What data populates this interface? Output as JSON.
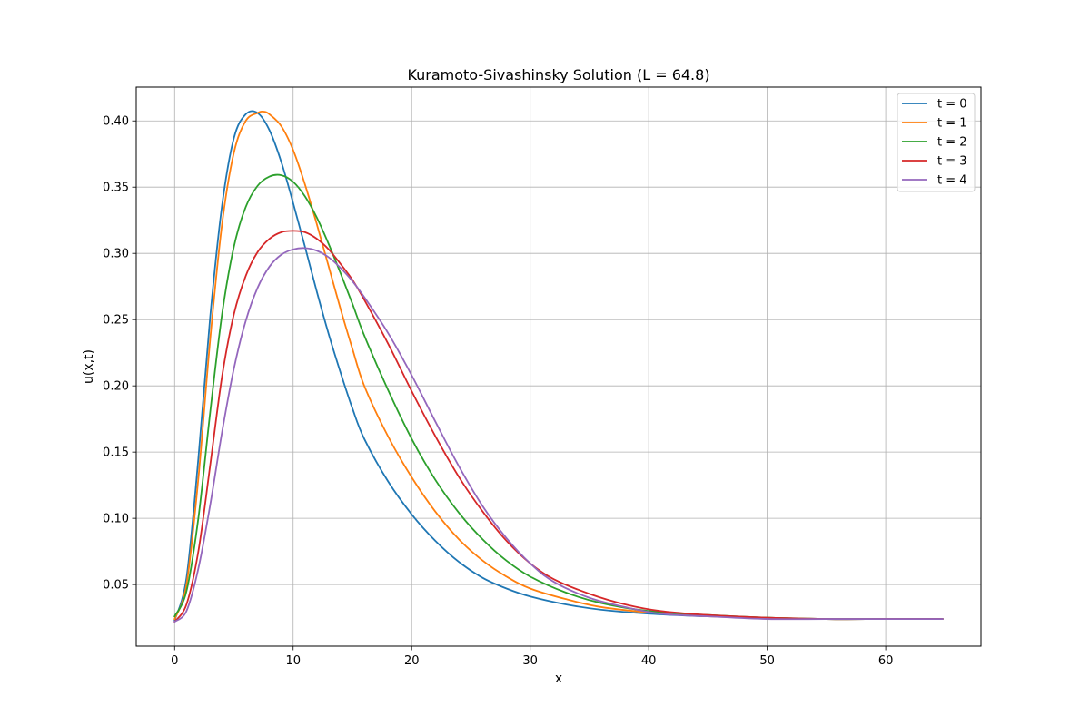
{
  "chart_data": {
    "type": "line",
    "title": "Kuramoto-Sivashinsky Solution (L = 64.8)",
    "xlabel": "x",
    "ylabel": "u(x,t)",
    "xlim": [
      -3.24,
      68.04
    ],
    "ylim": [
      0.0035,
      0.4255
    ],
    "xticks": [
      0,
      10,
      20,
      30,
      40,
      50,
      60
    ],
    "xtick_labels": [
      "0",
      "10",
      "20",
      "30",
      "40",
      "50",
      "60"
    ],
    "yticks": [
      0.05,
      0.1,
      0.15,
      0.2,
      0.25,
      0.3,
      0.35,
      0.4
    ],
    "ytick_labels": [
      "0.05",
      "0.10",
      "0.15",
      "0.20",
      "0.25",
      "0.30",
      "0.35",
      "0.40"
    ],
    "grid": true,
    "legend_position": "top-right",
    "series": [
      {
        "name": "t = 0",
        "color": "#1f77b4",
        "x": [
          0,
          1,
          2,
          3,
          4,
          5,
          6,
          7,
          8,
          9,
          10,
          11,
          12,
          13,
          14,
          15,
          16,
          18,
          20,
          22,
          24,
          26,
          28,
          30,
          33,
          36,
          40,
          45,
          50,
          55,
          60,
          64.8
        ],
        "y": [
          0.023,
          0.055,
          0.145,
          0.252,
          0.336,
          0.387,
          0.405,
          0.406,
          0.393,
          0.369,
          0.338,
          0.305,
          0.271,
          0.239,
          0.21,
          0.183,
          0.16,
          0.128,
          0.103,
          0.083,
          0.067,
          0.055,
          0.047,
          0.041,
          0.035,
          0.031,
          0.028,
          0.026,
          0.025,
          0.024,
          0.024,
          0.024
        ]
      },
      {
        "name": "t = 1",
        "color": "#ff7f0e",
        "x": [
          0,
          1,
          2,
          3,
          4,
          5,
          6,
          7,
          7.5,
          8,
          9,
          10,
          11,
          12,
          13,
          14,
          15,
          16,
          18,
          20,
          22,
          24,
          26,
          28,
          30,
          33,
          36,
          40,
          45,
          50,
          55,
          60,
          64.8
        ],
        "y": [
          0.024,
          0.05,
          0.13,
          0.235,
          0.322,
          0.376,
          0.4,
          0.406,
          0.407,
          0.405,
          0.396,
          0.378,
          0.352,
          0.322,
          0.29,
          0.258,
          0.228,
          0.2,
          0.162,
          0.131,
          0.105,
          0.084,
          0.068,
          0.056,
          0.047,
          0.039,
          0.033,
          0.029,
          0.026,
          0.025,
          0.024,
          0.024,
          0.024
        ]
      },
      {
        "name": "t = 2",
        "color": "#2ca02c",
        "x": [
          0,
          1,
          2,
          3,
          4,
          5,
          6,
          7,
          8,
          9,
          10,
          11,
          12,
          13,
          14,
          15,
          16,
          18,
          20,
          22,
          24,
          26,
          28,
          30,
          33,
          36,
          40,
          45,
          50,
          55,
          60,
          64.8
        ],
        "y": [
          0.026,
          0.045,
          0.1,
          0.18,
          0.254,
          0.305,
          0.335,
          0.351,
          0.358,
          0.359,
          0.354,
          0.343,
          0.327,
          0.307,
          0.285,
          0.262,
          0.238,
          0.197,
          0.16,
          0.129,
          0.104,
          0.084,
          0.068,
          0.056,
          0.044,
          0.036,
          0.03,
          0.027,
          0.025,
          0.024,
          0.024,
          0.024
        ]
      },
      {
        "name": "t = 3",
        "color": "#d62728",
        "x": [
          0,
          1,
          2,
          3,
          4,
          5,
          6,
          7,
          8,
          9,
          10,
          11,
          12,
          13,
          14,
          15,
          16,
          18,
          20,
          22,
          24,
          26,
          28,
          30,
          32,
          35,
          38,
          41,
          45,
          50,
          55,
          60,
          64.8
        ],
        "y": [
          0.022,
          0.035,
          0.075,
          0.14,
          0.207,
          0.254,
          0.283,
          0.301,
          0.311,
          0.316,
          0.317,
          0.316,
          0.311,
          0.303,
          0.292,
          0.28,
          0.265,
          0.232,
          0.196,
          0.162,
          0.131,
          0.105,
          0.083,
          0.066,
          0.054,
          0.043,
          0.035,
          0.03,
          0.027,
          0.025,
          0.024,
          0.024,
          0.024
        ]
      },
      {
        "name": "t = 4",
        "color": "#9467bd",
        "x": [
          0,
          1,
          2,
          3,
          4,
          5,
          6,
          7,
          8,
          9,
          10,
          11,
          12,
          13,
          14,
          15,
          16,
          18,
          20,
          22,
          24,
          26,
          28,
          30,
          32,
          35,
          38,
          41,
          45,
          50,
          55,
          60,
          64.8
        ],
        "y": [
          0.022,
          0.03,
          0.062,
          0.11,
          0.165,
          0.213,
          0.249,
          0.274,
          0.29,
          0.299,
          0.303,
          0.304,
          0.302,
          0.297,
          0.289,
          0.279,
          0.267,
          0.24,
          0.208,
          0.173,
          0.139,
          0.109,
          0.085,
          0.066,
          0.052,
          0.04,
          0.033,
          0.028,
          0.026,
          0.024,
          0.024,
          0.024,
          0.024
        ]
      }
    ]
  }
}
